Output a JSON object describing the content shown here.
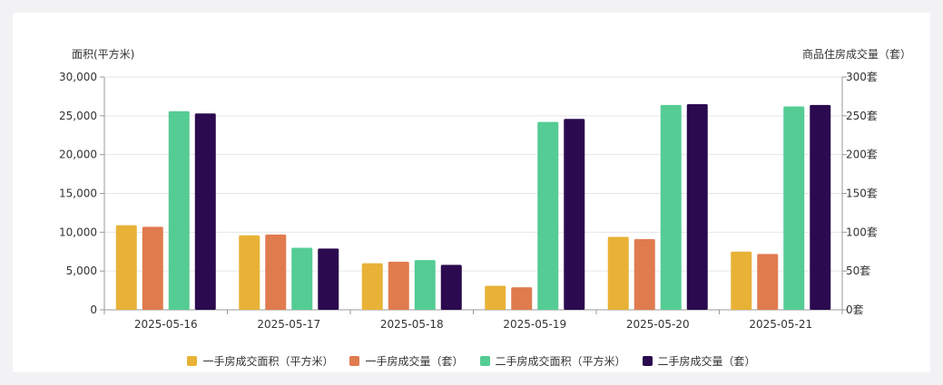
{
  "chart_data": {
    "type": "bar",
    "categories": [
      "2025-05-16",
      "2025-05-17",
      "2025-05-18",
      "2025-05-19",
      "2025-05-20",
      "2025-05-21"
    ],
    "left_axis": {
      "label": "面积(平方米)",
      "range": [
        0,
        30000
      ],
      "ticks": [
        "0",
        "5,000",
        "10,000",
        "15,000",
        "20,000",
        "25,000",
        "30,000"
      ]
    },
    "right_axis": {
      "label": "商品住房成交量（套）",
      "range": [
        0,
        300
      ],
      "ticks": [
        "0套",
        "50套",
        "100套",
        "150套",
        "200套",
        "250套",
        "300套"
      ]
    },
    "series": [
      {
        "name": "一手房成交面积（平方米）",
        "axis": "left",
        "color": "#e8b236",
        "values": [
          10900,
          9600,
          6000,
          3100,
          9400,
          7500
        ]
      },
      {
        "name": "一手房成交量（套）",
        "axis": "right",
        "color": "#e07b4e",
        "values": [
          107,
          97,
          62,
          29,
          91,
          72
        ]
      },
      {
        "name": "二手房成交面积（平方米）",
        "axis": "left",
        "color": "#54cc94",
        "values": [
          25600,
          8000,
          6400,
          24200,
          26400,
          26200
        ]
      },
      {
        "name": "二手房成交量（套）",
        "axis": "right",
        "color": "#2b0a4f",
        "values": [
          253,
          79,
          58,
          246,
          265,
          264
        ]
      }
    ],
    "grid": true,
    "legend_position": "bottom"
  }
}
